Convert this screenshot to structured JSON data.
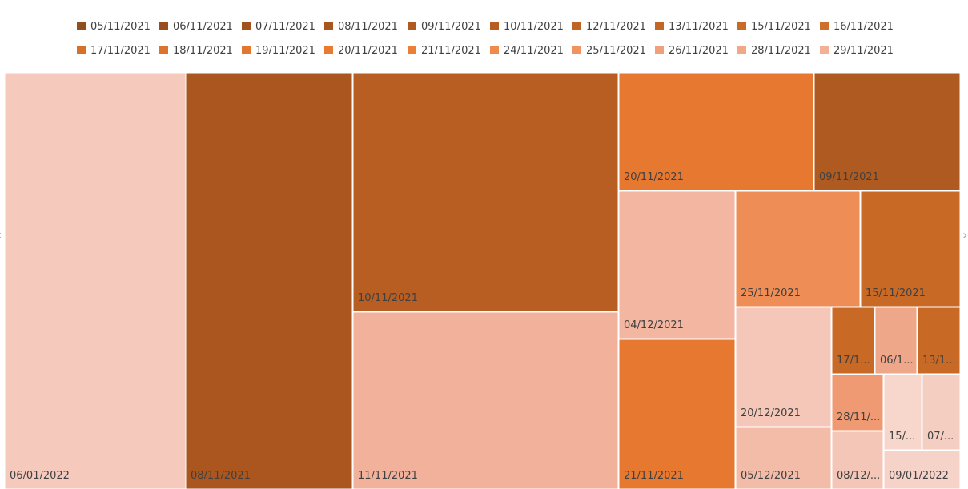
{
  "chart_data": {
    "type": "treemap",
    "legend_position": "top",
    "legend": [
      {
        "label": "05/11/2021",
        "color": "#8F4F1F"
      },
      {
        "label": "06/11/2021",
        "color": "#994F1D"
      },
      {
        "label": "07/11/2021",
        "color": "#A2531D"
      },
      {
        "label": "08/11/2021",
        "color": "#A8561E"
      },
      {
        "label": "09/11/2021",
        "color": "#AE5A20"
      },
      {
        "label": "10/11/2021",
        "color": "#B65E22"
      },
      {
        "label": "12/11/2021",
        "color": "#BE6424"
      },
      {
        "label": "13/11/2021",
        "color": "#C36726"
      },
      {
        "label": "15/11/2021",
        "color": "#C86A28"
      },
      {
        "label": "16/11/2021",
        "color": "#CE6E2A"
      },
      {
        "label": "17/11/2021",
        "color": "#D6712C"
      },
      {
        "label": "18/11/2021",
        "color": "#DC742E"
      },
      {
        "label": "19/11/2021",
        "color": "#E37730"
      },
      {
        "label": "20/11/2021",
        "color": "#E87A32"
      },
      {
        "label": "21/11/2021",
        "color": "#EC7F36"
      },
      {
        "label": "24/11/2021",
        "color": "#EE8C4E"
      },
      {
        "label": "25/11/2021",
        "color": "#EF9460"
      },
      {
        "label": "26/11/2021",
        "color": "#F0A07B"
      },
      {
        "label": "28/11/2021",
        "color": "#F2A786"
      },
      {
        "label": "29/11/2021",
        "color": "#F3B097"
      }
    ],
    "tiles": [
      {
        "label": "06/01/2022",
        "color": "#F5CABD"
      },
      {
        "label": "08/11/2021",
        "color": "#AA561E"
      },
      {
        "label": "10/11/2021",
        "color": "#B85E22"
      },
      {
        "label": "11/11/2021",
        "color": "#F1B19A"
      },
      {
        "label": "20/11/2021",
        "color": "#E77830"
      },
      {
        "label": "09/11/2021",
        "color": "#AE5A20"
      },
      {
        "label": "04/12/2021",
        "color": "#F2B6A1"
      },
      {
        "label": "21/11/2021",
        "color": "#E77830"
      },
      {
        "label": "25/11/2021",
        "color": "#EE8D55"
      },
      {
        "label": "15/11/2021",
        "color": "#C86926"
      },
      {
        "label": "20/12/2021",
        "color": "#F5C7B8"
      },
      {
        "label": "05/12/2021",
        "color": "#F3BCA9"
      },
      {
        "label": "17/1...",
        "color": "#C86926"
      },
      {
        "label": "06/1...",
        "color": "#EFA78A"
      },
      {
        "label": "13/1...",
        "color": "#C86926"
      },
      {
        "label": "28/11/...",
        "color": "#EF9A73"
      },
      {
        "label": "15/...",
        "color": "#F7D6CB"
      },
      {
        "label": "07/...",
        "color": "#F5CEC2"
      },
      {
        "label": "08/12/...",
        "color": "#F4C6B7"
      },
      {
        "label": "09/01/2022",
        "color": "#F6D3C8"
      }
    ]
  }
}
